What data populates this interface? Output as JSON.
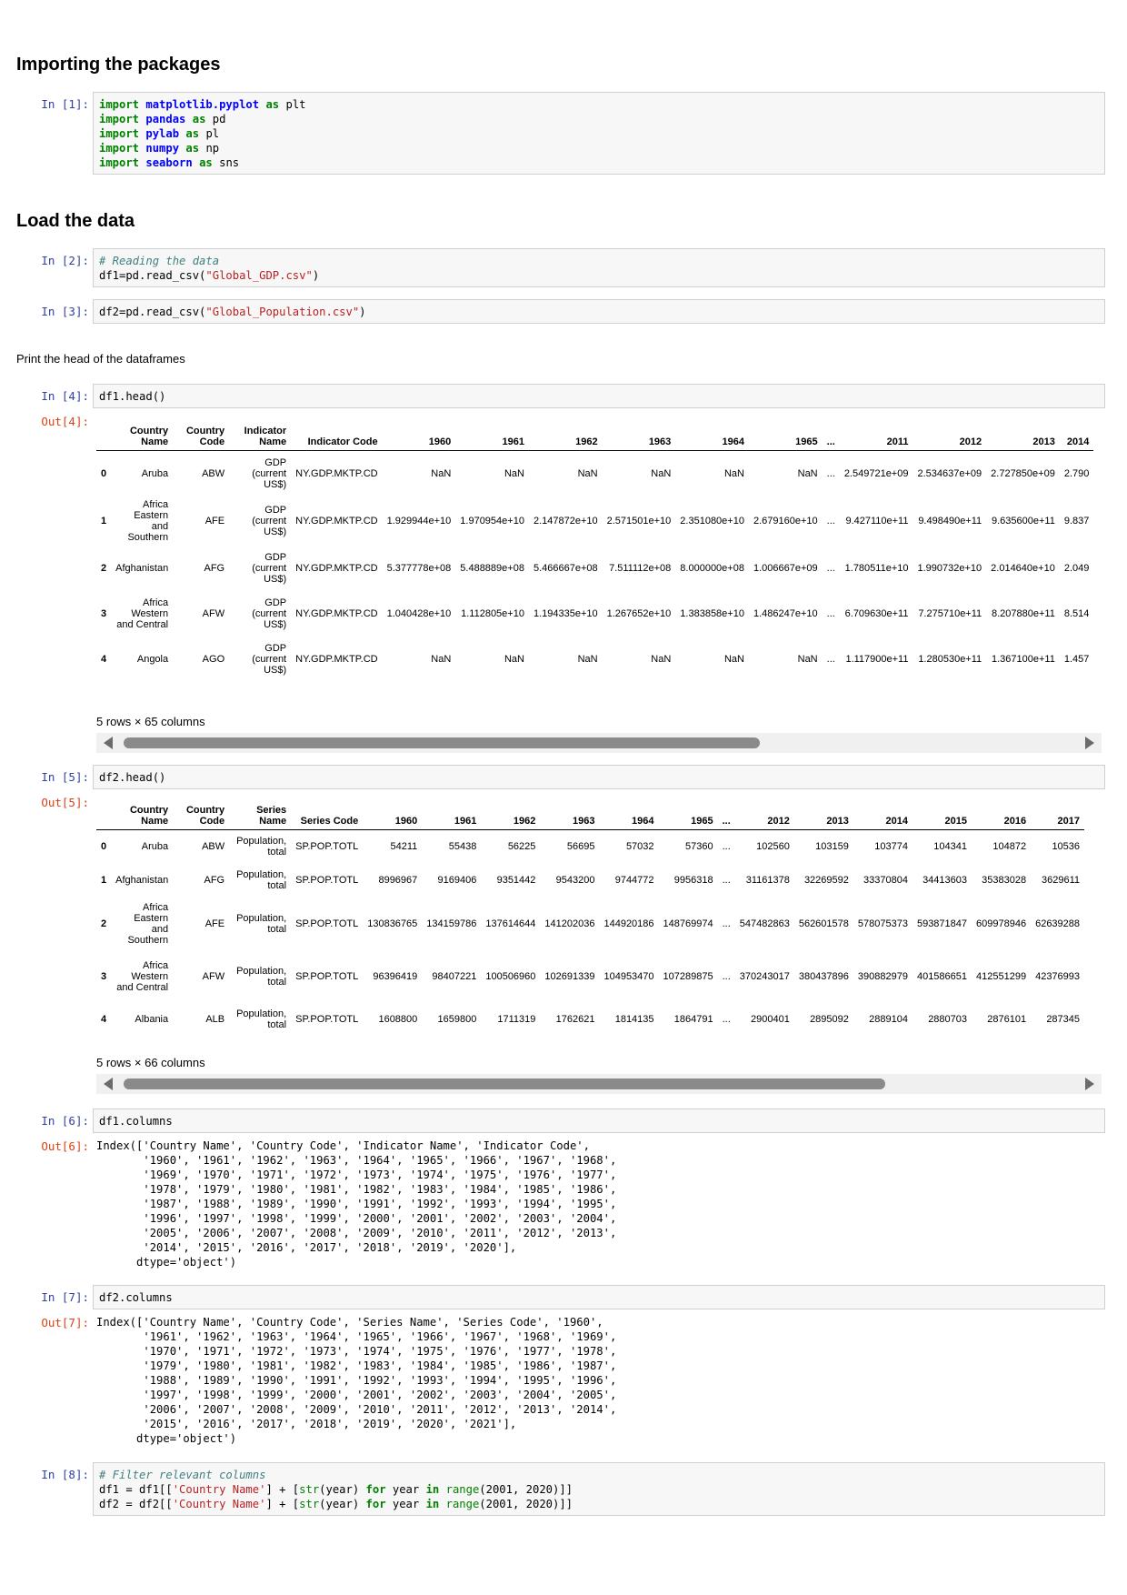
{
  "headings": {
    "packages": "Importing the packages",
    "load": "Load the data"
  },
  "prompts": {
    "in1": "In [1]:",
    "in2": "In [2]:",
    "in3": "In [3]:",
    "in4": "In [4]:",
    "out4": "Out[4]:",
    "in5": "In [5]:",
    "out5": "Out[5]:",
    "in6": "In [6]:",
    "out6": "Out[6]:",
    "in7": "In [7]:",
    "out7": "Out[7]:",
    "in8": "In [8]:"
  },
  "cell1": [
    [
      "import",
      "matplotlib.pyplot",
      "as",
      "plt"
    ],
    [
      "import",
      "pandas",
      "as",
      "pd"
    ],
    [
      "import",
      "pylab",
      "as",
      "pl"
    ],
    [
      "import",
      "numpy",
      "as",
      "np"
    ],
    [
      "import",
      "seaborn",
      "as",
      "sns"
    ]
  ],
  "cell2": {
    "comment": "# Reading the data",
    "code_prefix": "df1=pd.read_csv(",
    "string": "\"Global_GDP.csv\"",
    "code_suffix": ")"
  },
  "cell3": {
    "code_prefix": "df2=pd.read_csv(",
    "string": "\"Global_Population.csv\"",
    "code_suffix": ")"
  },
  "markdown_print_head": "Print the head of the dataframes",
  "cell4": "df1.head()",
  "cell5": "df2.head()",
  "cell6": "df1.columns",
  "cell7": "df2.columns",
  "df1": {
    "columns": [
      "",
      "Country Name",
      "Country Code",
      "Indicator Name",
      "Indicator Code",
      "1960",
      "1961",
      "1962",
      "1963",
      "1964",
      "1965",
      "...",
      "2011",
      "2012",
      "2013",
      "2014"
    ],
    "rows": [
      [
        "0",
        "Aruba",
        "ABW",
        "GDP (current US$)",
        "NY.GDP.MKTP.CD",
        "NaN",
        "NaN",
        "NaN",
        "NaN",
        "NaN",
        "NaN",
        "...",
        "2.549721e+09",
        "2.534637e+09",
        "2.727850e+09",
        "2.790"
      ],
      [
        "1",
        "Africa Eastern and Southern",
        "AFE",
        "GDP (current US$)",
        "NY.GDP.MKTP.CD",
        "1.929944e+10",
        "1.970954e+10",
        "2.147872e+10",
        "2.571501e+10",
        "2.351080e+10",
        "2.679160e+10",
        "...",
        "9.427110e+11",
        "9.498490e+11",
        "9.635600e+11",
        "9.837"
      ],
      [
        "2",
        "Afghanistan",
        "AFG",
        "GDP (current US$)",
        "NY.GDP.MKTP.CD",
        "5.377778e+08",
        "5.488889e+08",
        "5.466667e+08",
        "7.511112e+08",
        "8.000000e+08",
        "1.006667e+09",
        "...",
        "1.780511e+10",
        "1.990732e+10",
        "2.014640e+10",
        "2.049"
      ],
      [
        "3",
        "Africa Western and Central",
        "AFW",
        "GDP (current US$)",
        "NY.GDP.MKTP.CD",
        "1.040428e+10",
        "1.112805e+10",
        "1.194335e+10",
        "1.267652e+10",
        "1.383858e+10",
        "1.486247e+10",
        "...",
        "6.709630e+11",
        "7.275710e+11",
        "8.207880e+11",
        "8.514"
      ],
      [
        "4",
        "Angola",
        "AGO",
        "GDP (current US$)",
        "NY.GDP.MKTP.CD",
        "NaN",
        "NaN",
        "NaN",
        "NaN",
        "NaN",
        "NaN",
        "...",
        "1.117900e+11",
        "1.280530e+11",
        "1.367100e+11",
        "1.457"
      ]
    ],
    "shape": "5 rows × 65 columns"
  },
  "df2": {
    "columns": [
      "",
      "Country Name",
      "Country Code",
      "Series Name",
      "Series Code",
      "1960",
      "1961",
      "1962",
      "1963",
      "1964",
      "1965",
      "...",
      "2012",
      "2013",
      "2014",
      "2015",
      "2016",
      "2017"
    ],
    "rows": [
      [
        "0",
        "Aruba",
        "ABW",
        "Population, total",
        "SP.POP.TOTL",
        "54211",
        "55438",
        "56225",
        "56695",
        "57032",
        "57360",
        "...",
        "102560",
        "103159",
        "103774",
        "104341",
        "104872",
        "10536"
      ],
      [
        "1",
        "Afghanistan",
        "AFG",
        "Population, total",
        "SP.POP.TOTL",
        "8996967",
        "9169406",
        "9351442",
        "9543200",
        "9744772",
        "9956318",
        "...",
        "31161378",
        "32269592",
        "33370804",
        "34413603",
        "35383028",
        "3629611"
      ],
      [
        "2",
        "Africa Eastern and Southern",
        "AFE",
        "Population, total",
        "SP.POP.TOTL",
        "130836765",
        "134159786",
        "137614644",
        "141202036",
        "144920186",
        "148769974",
        "...",
        "547482863",
        "562601578",
        "578075373",
        "593871847",
        "609978946",
        "62639288"
      ],
      [
        "3",
        "Africa Western and Central",
        "AFW",
        "Population, total",
        "SP.POP.TOTL",
        "96396419",
        "98407221",
        "100506960",
        "102691339",
        "104953470",
        "107289875",
        "...",
        "370243017",
        "380437896",
        "390882979",
        "401586651",
        "412551299",
        "42376993"
      ],
      [
        "4",
        "Albania",
        "ALB",
        "Population, total",
        "SP.POP.TOTL",
        "1608800",
        "1659800",
        "1711319",
        "1762621",
        "1814135",
        "1864791",
        "...",
        "2900401",
        "2895092",
        "2889104",
        "2880703",
        "2876101",
        "287345"
      ]
    ],
    "shape": "5 rows × 66 columns"
  },
  "out6": [
    "Index(['Country Name', 'Country Code', 'Indicator Name', 'Indicator Code',",
    "       '1960', '1961', '1962', '1963', '1964', '1965', '1966', '1967', '1968',",
    "       '1969', '1970', '1971', '1972', '1973', '1974', '1975', '1976', '1977',",
    "       '1978', '1979', '1980', '1981', '1982', '1983', '1984', '1985', '1986',",
    "       '1987', '1988', '1989', '1990', '1991', '1992', '1993', '1994', '1995',",
    "       '1996', '1997', '1998', '1999', '2000', '2001', '2002', '2003', '2004',",
    "       '2005', '2006', '2007', '2008', '2009', '2010', '2011', '2012', '2013',",
    "       '2014', '2015', '2016', '2017', '2018', '2019', '2020'],",
    "      dtype='object')"
  ],
  "out7": [
    "Index(['Country Name', 'Country Code', 'Series Name', 'Series Code', '1960',",
    "       '1961', '1962', '1963', '1964', '1965', '1966', '1967', '1968', '1969',",
    "       '1970', '1971', '1972', '1973', '1974', '1975', '1976', '1977', '1978',",
    "       '1979', '1980', '1981', '1982', '1983', '1984', '1985', '1986', '1987',",
    "       '1988', '1989', '1990', '1991', '1992', '1993', '1994', '1995', '1996',",
    "       '1997', '1998', '1999', '2000', '2001', '2002', '2003', '2004', '2005',",
    "       '2006', '2007', '2008', '2009', '2010', '2011', '2012', '2013', '2014',",
    "       '2015', '2016', '2017', '2018', '2019', '2020', '2021'],",
    "      dtype='object')"
  ],
  "cell8": {
    "comment": "# Filter relevant columns",
    "line1": {
      "a": "df1 = df1[[",
      "s": "'Country Name'",
      "b": "] + [",
      "f": "str",
      "c": "(year) ",
      "kw1": "for",
      "d": " year ",
      "kw2": "in",
      "e": " ",
      "f2": "range",
      "g": "(2001, 2020)]]"
    },
    "line2": {
      "a": "df2 = df2[[",
      "s": "'Country Name'",
      "b": "] + [",
      "f": "str",
      "c": "(year) ",
      "kw1": "for",
      "d": " year ",
      "kw2": "in",
      "e": " ",
      "f2": "range",
      "g": "(2001, 2020)]]"
    }
  }
}
